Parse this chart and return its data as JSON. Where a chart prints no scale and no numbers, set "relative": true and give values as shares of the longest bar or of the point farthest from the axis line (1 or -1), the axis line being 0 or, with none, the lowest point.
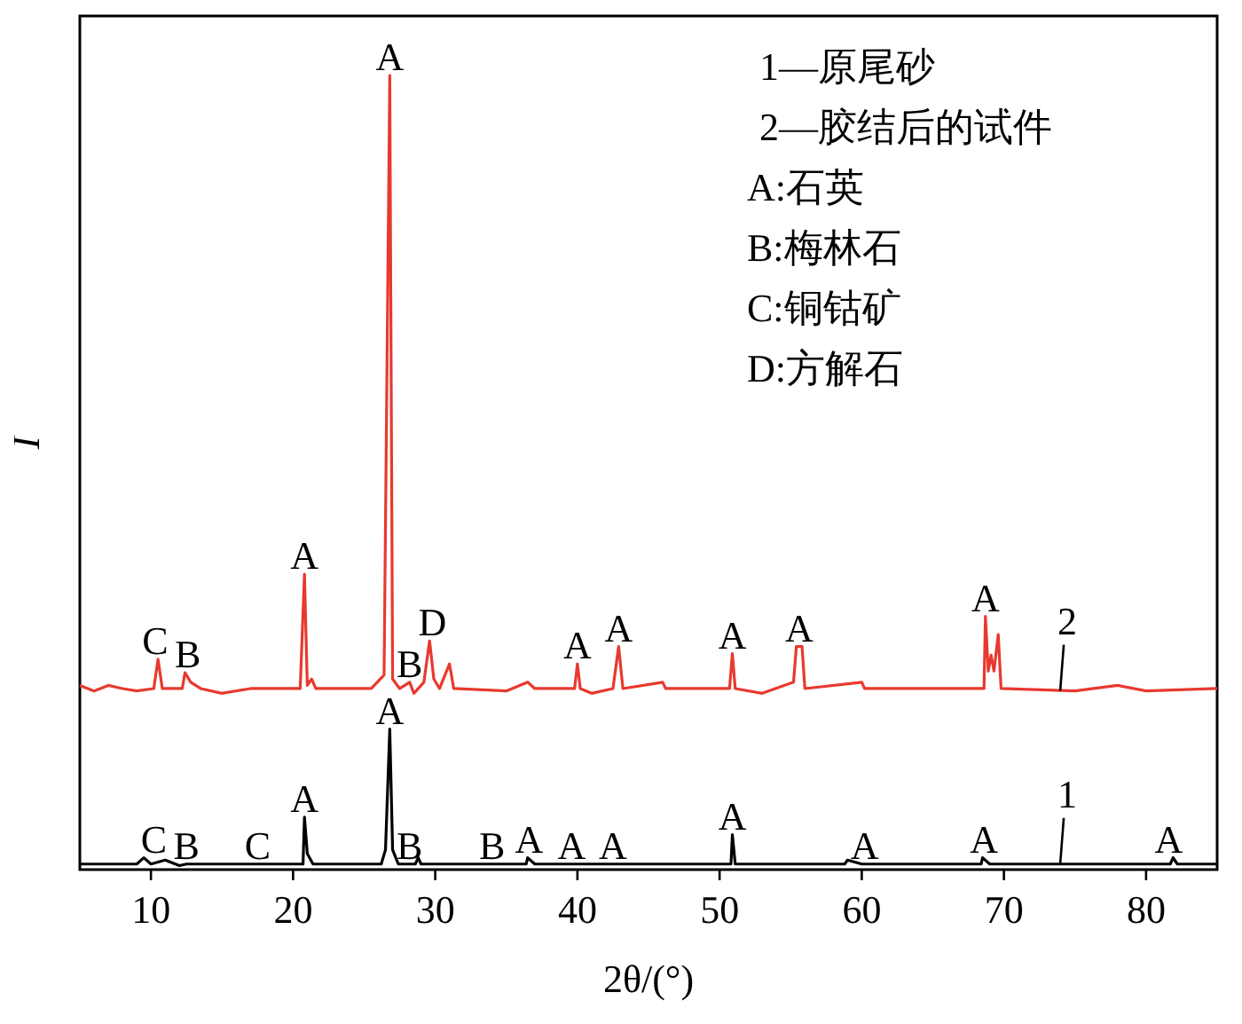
{
  "chart_data": {
    "type": "line",
    "relative": true,
    "xlabel": "2θ/(°)",
    "ylabel": "I",
    "xlim": [
      5,
      85
    ],
    "xticks": [
      10,
      20,
      30,
      40,
      50,
      60,
      70,
      80
    ],
    "grid": false,
    "marker": "none",
    "line_style": "solid",
    "series": [
      {
        "name": "1",
        "color": "#000000",
        "x": [
          5,
          9,
          9.5,
          10,
          11,
          12,
          12.5,
          20.7,
          20.8,
          21.0,
          21.4,
          26.2,
          26.5,
          26.8,
          27.0,
          27.4,
          28.6,
          28.8,
          29,
          36.4,
          36.5,
          37,
          50.8,
          50.9,
          51.1,
          58.8,
          59,
          60,
          68.4,
          68.5,
          69,
          81.7,
          81.9,
          82.2,
          85
        ],
        "values": [
          0.007,
          0.007,
          0.015,
          0.007,
          0.012,
          0.005,
          0.007,
          0.007,
          0.066,
          0.02,
          0.007,
          0.007,
          0.025,
          0.177,
          0.025,
          0.007,
          0.007,
          0.015,
          0.007,
          0.007,
          0.015,
          0.007,
          0.007,
          0.044,
          0.007,
          0.007,
          0.012,
          0.007,
          0.007,
          0.015,
          0.007,
          0.007,
          0.015,
          0.007,
          0.007
        ]
      },
      {
        "name": "2",
        "color": "#e8392f",
        "x": [
          5,
          6,
          7,
          8,
          9,
          10.2,
          10.5,
          10.8,
          12.2,
          12.4,
          12.8,
          13.5,
          15,
          17,
          20.5,
          20.8,
          21.0,
          21.3,
          21.6,
          25.5,
          26.4,
          26.8,
          27.0,
          27.5,
          28.2,
          28.5,
          29.2,
          29.6,
          29.9,
          30.3,
          31.0,
          31.3,
          35,
          36.5,
          37,
          39.8,
          40.0,
          40.2,
          41,
          42.5,
          42.9,
          43.2,
          46,
          46.2,
          50.7,
          50.9,
          51.1,
          53,
          55.2,
          55.4,
          55.8,
          56.0,
          60,
          60.2,
          68.6,
          68.7,
          68.9,
          69.1,
          69.3,
          69.6,
          69.8,
          75,
          78,
          80,
          85
        ],
        "values": [
          0.232,
          0.225,
          0.232,
          0.228,
          0.225,
          0.228,
          0.265,
          0.228,
          0.228,
          0.248,
          0.236,
          0.228,
          0.222,
          0.228,
          0.228,
          0.372,
          0.232,
          0.24,
          0.228,
          0.228,
          0.245,
          1,
          0.24,
          0.228,
          0.236,
          0.222,
          0.236,
          0.288,
          0.24,
          0.228,
          0.259,
          0.228,
          0.225,
          0.236,
          0.228,
          0.228,
          0.259,
          0.228,
          0.222,
          0.228,
          0.281,
          0.228,
          0.236,
          0.228,
          0.228,
          0.272,
          0.228,
          0.222,
          0.236,
          0.281,
          0.281,
          0.228,
          0.236,
          0.228,
          0.228,
          0.319,
          0.25,
          0.27,
          0.25,
          0.296,
          0.228,
          0.225,
          0.232,
          0.225,
          0.228
        ]
      }
    ],
    "annotations": [
      "1—原尾砂",
      "2—胶结后的试件",
      "A:石英",
      "B:梅林石",
      "C:铜钴矿",
      "D:方解石",
      {
        "text": "C",
        "x": 10.2,
        "y": 0.015
      },
      {
        "text": "B",
        "x": 12.5,
        "y": 0.007
      },
      {
        "text": "C",
        "x": 17.5,
        "y": 0.007
      },
      {
        "text": "A",
        "x": 20.8,
        "y": 0.066
      },
      {
        "text": "A",
        "x": 26.8,
        "y": 0.177
      },
      {
        "text": "B",
        "x": 28.2,
        "y": 0.007
      },
      {
        "text": "B",
        "x": 34,
        "y": 0.007
      },
      {
        "text": "A",
        "x": 36.6,
        "y": 0.015
      },
      {
        "text": "A",
        "x": 39.6,
        "y": 0.007
      },
      {
        "text": "A",
        "x": 42.5,
        "y": 0.007
      },
      {
        "text": "A",
        "x": 50.9,
        "y": 0.044
      },
      {
        "text": "A",
        "x": 60.2,
        "y": 0.007
      },
      {
        "text": "A",
        "x": 68.6,
        "y": 0.015
      },
      {
        "text": "A",
        "x": 81.6,
        "y": 0.015
      },
      {
        "text": "C",
        "x": 10.3,
        "y": 0.265
      },
      {
        "text": "B",
        "x": 12.6,
        "y": 0.248
      },
      {
        "text": "A",
        "x": 20.8,
        "y": 0.372
      },
      {
        "text": "A",
        "x": 26.8,
        "y": 1
      },
      {
        "text": "B",
        "x": 28.2,
        "y": 0.236
      },
      {
        "text": "D",
        "x": 29.8,
        "y": 0.288
      },
      {
        "text": "A",
        "x": 40.0,
        "y": 0.259
      },
      {
        "text": "A",
        "x": 42.9,
        "y": 0.281
      },
      {
        "text": "A",
        "x": 50.9,
        "y": 0.272
      },
      {
        "text": "A",
        "x": 55.6,
        "y": 0.281
      },
      {
        "text": "A",
        "x": 68.7,
        "y": 0.319
      }
    ]
  }
}
